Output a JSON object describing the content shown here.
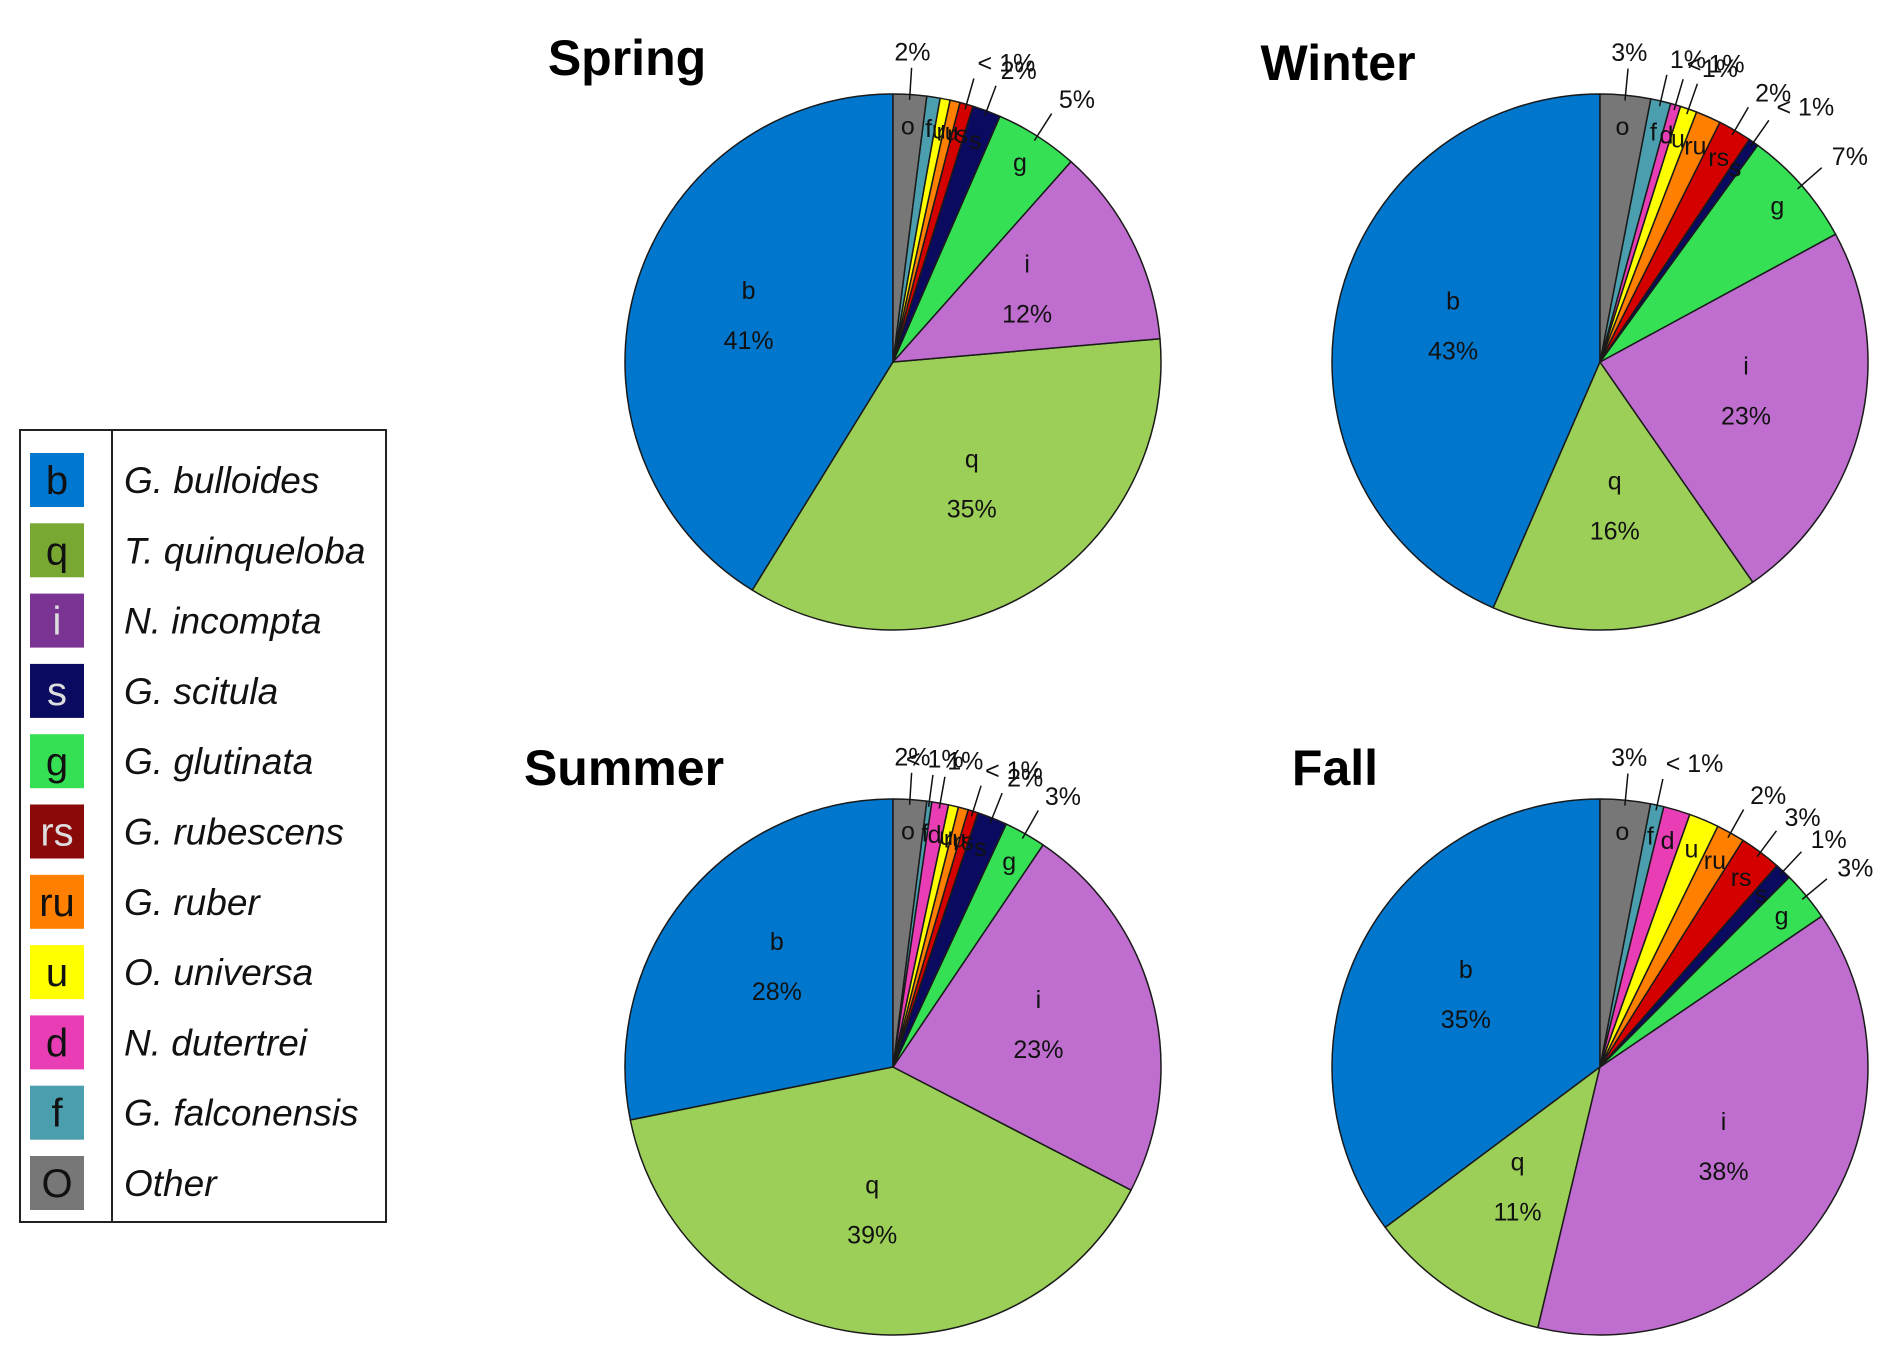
{
  "legend": {
    "entries": [
      {
        "code": "b",
        "name": "G. bulloides",
        "color": "#0078CF",
        "code_color": "#111111"
      },
      {
        "code": "q",
        "name": "T. quinqueloba",
        "color": "#78A832",
        "code_color": "#111111"
      },
      {
        "code": "i",
        "name": "N. incompta",
        "color": "#7B3394",
        "code_color": "#dddddd"
      },
      {
        "code": "s",
        "name": "G. scitula",
        "color": "#0A0A60",
        "code_color": "#dddddd"
      },
      {
        "code": "g",
        "name": "G. glutinata",
        "color": "#36E055",
        "code_color": "#111111"
      },
      {
        "code": "rs",
        "name": "G. rubescens",
        "color": "#8A0A0A",
        "code_color": "#dddddd"
      },
      {
        "code": "ru",
        "name": "G. ruber",
        "color": "#FF7F00",
        "code_color": "#111111"
      },
      {
        "code": "u",
        "name": "O. universa",
        "color": "#FFFF00",
        "code_color": "#111111"
      },
      {
        "code": "d",
        "name": "N. dutertrei",
        "color": "#E83DB5",
        "code_color": "#111111"
      },
      {
        "code": "f",
        "name": "G. falconensis",
        "color": "#4A9EAE",
        "code_color": "#111111"
      },
      {
        "code": "O",
        "name": "Other",
        "color": "#777777",
        "code_color": "#111111"
      }
    ]
  },
  "chart_data": [
    {
      "type": "pie",
      "title": "Spring",
      "slices": [
        {
          "code": "b",
          "label": "b",
          "percent_label": "41%",
          "value": 41,
          "color": "#0077CC"
        },
        {
          "code": "q",
          "label": "q",
          "percent_label": "35%",
          "value": 35,
          "color": "#9CCF57"
        },
        {
          "code": "i",
          "label": "i",
          "percent_label": "12%",
          "value": 12,
          "color": "#BF6ECF"
        },
        {
          "code": "g",
          "label": "g",
          "percent_label": "5%",
          "value": 5,
          "color": "#36E055"
        },
        {
          "code": "s",
          "label": "s",
          "percent_label": "2%",
          "value": 1.7,
          "color": "#0A0A60"
        },
        {
          "code": "rs",
          "label": "rs",
          "percent_label": "< 1%",
          "value": 0.8,
          "color": "#D40000"
        },
        {
          "code": "ru",
          "label": "ru",
          "percent_label": "",
          "value": 0.6,
          "color": "#FF7F00"
        },
        {
          "code": "u",
          "label": "u",
          "percent_label": "",
          "value": 0.6,
          "color": "#FFFF00"
        },
        {
          "code": "f",
          "label": "f",
          "percent_label": "",
          "value": 0.8,
          "color": "#4A9EAE"
        },
        {
          "code": "O",
          "label": "o",
          "percent_label": "2%",
          "value": 2,
          "color": "#777777"
        }
      ]
    },
    {
      "type": "pie",
      "title": "Winter",
      "slices": [
        {
          "code": "b",
          "label": "b",
          "percent_label": "43%",
          "value": 43,
          "color": "#0077CC"
        },
        {
          "code": "q",
          "label": "q",
          "percent_label": "16%",
          "value": 16,
          "color": "#9CCF57"
        },
        {
          "code": "i",
          "label": "i",
          "percent_label": "23%",
          "value": 23,
          "color": "#BF6ECF"
        },
        {
          "code": "g",
          "label": "g",
          "percent_label": "7%",
          "value": 7,
          "color": "#36E055"
        },
        {
          "code": "s",
          "label": "s",
          "percent_label": "< 1%",
          "value": 0.6,
          "color": "#0A0A60"
        },
        {
          "code": "rs",
          "label": "rs",
          "percent_label": "2%",
          "value": 2,
          "color": "#D40000"
        },
        {
          "code": "ru",
          "label": "ru",
          "percent_label": "",
          "value": 1.5,
          "color": "#FF7F00"
        },
        {
          "code": "u",
          "label": "u",
          "percent_label": "1%",
          "value": 1,
          "color": "#FFFF00"
        },
        {
          "code": "d",
          "label": "d",
          "percent_label": "< 1%",
          "value": 0.6,
          "color": "#E83DB5"
        },
        {
          "code": "f",
          "label": "f",
          "percent_label": "1%",
          "value": 1.2,
          "color": "#4A9EAE"
        },
        {
          "code": "O",
          "label": "o",
          "percent_label": "3%",
          "value": 3,
          "color": "#777777"
        }
      ]
    },
    {
      "type": "pie",
      "title": "Summer",
      "slices": [
        {
          "code": "b",
          "label": "b",
          "percent_label": "28%",
          "value": 28,
          "color": "#0077CC"
        },
        {
          "code": "q",
          "label": "q",
          "percent_label": "39%",
          "value": 39,
          "color": "#9CCF57"
        },
        {
          "code": "i",
          "label": "i",
          "percent_label": "23%",
          "value": 23,
          "color": "#BF6ECF"
        },
        {
          "code": "g",
          "label": "g",
          "percent_label": "3%",
          "value": 2.5,
          "color": "#36E055"
        },
        {
          "code": "s",
          "label": "s",
          "percent_label": "2%",
          "value": 1.8,
          "color": "#0A0A60"
        },
        {
          "code": "rs",
          "label": "rs",
          "percent_label": "< 1%",
          "value": 0.6,
          "color": "#D40000"
        },
        {
          "code": "ru",
          "label": "ru",
          "percent_label": "",
          "value": 0.6,
          "color": "#FF7F00"
        },
        {
          "code": "u",
          "label": "u",
          "percent_label": "",
          "value": 0.6,
          "color": "#FFFF00"
        },
        {
          "code": "d",
          "label": "d",
          "percent_label": "1%",
          "value": 1,
          "color": "#E83DB5"
        },
        {
          "code": "f",
          "label": "f",
          "percent_label": "< 1%",
          "value": 0.3,
          "color": "#4A9EAE"
        },
        {
          "code": "O",
          "label": "o",
          "percent_label": "2%",
          "value": 2,
          "color": "#777777"
        }
      ]
    },
    {
      "type": "pie",
      "title": "Fall",
      "slices": [
        {
          "code": "b",
          "label": "b",
          "percent_label": "35%",
          "value": 35,
          "color": "#0077CC"
        },
        {
          "code": "q",
          "label": "q",
          "percent_label": "11%",
          "value": 11,
          "color": "#9CCF57"
        },
        {
          "code": "i",
          "label": "i",
          "percent_label": "38%",
          "value": 38,
          "color": "#BF6ECF"
        },
        {
          "code": "g",
          "label": "g",
          "percent_label": "3%",
          "value": 3,
          "color": "#36E055"
        },
        {
          "code": "s",
          "label": "s",
          "percent_label": "1%",
          "value": 1,
          "color": "#0A0A60"
        },
        {
          "code": "rs",
          "label": "rs",
          "percent_label": "3%",
          "value": 2.5,
          "color": "#D40000"
        },
        {
          "code": "ru",
          "label": "ru",
          "percent_label": "2%",
          "value": 1.7,
          "color": "#FF7F00"
        },
        {
          "code": "u",
          "label": "u",
          "percent_label": "",
          "value": 1.8,
          "color": "#FFFF00"
        },
        {
          "code": "d",
          "label": "d",
          "percent_label": "",
          "value": 1.6,
          "color": "#E83DB5"
        },
        {
          "code": "f",
          "label": "f",
          "percent_label": "< 1%",
          "value": 0.8,
          "color": "#4A9EAE"
        },
        {
          "code": "O",
          "label": "o",
          "percent_label": "3%",
          "value": 3,
          "color": "#777777"
        }
      ]
    }
  ]
}
